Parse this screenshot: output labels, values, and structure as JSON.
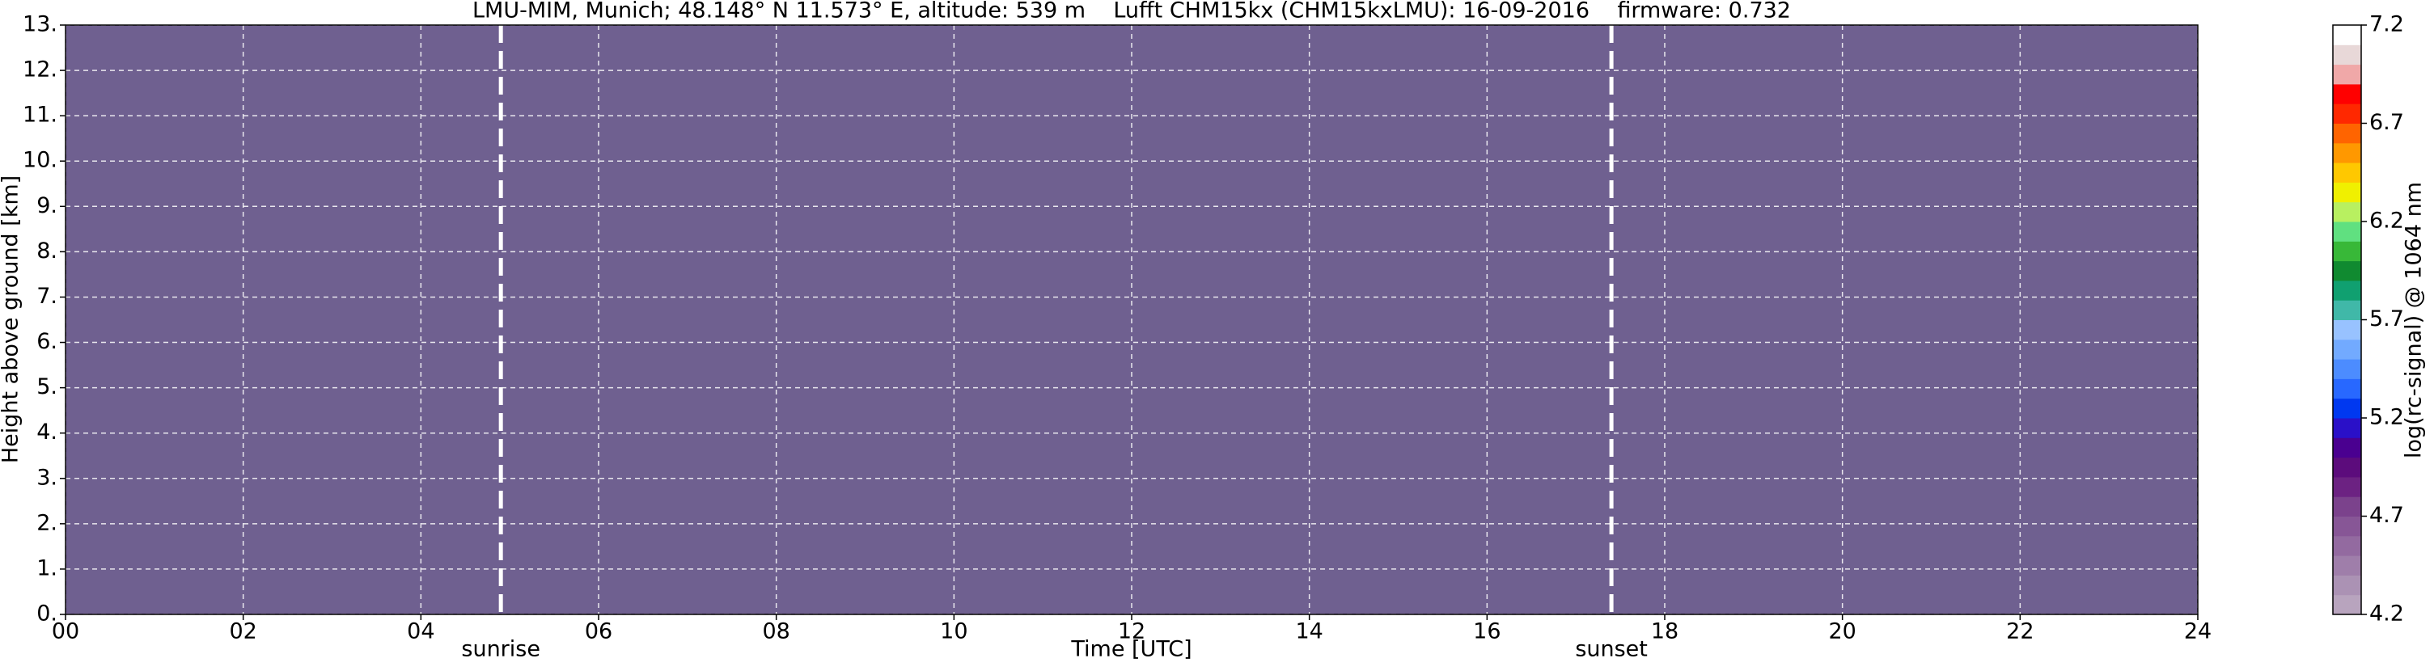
{
  "chart_data": {
    "type": "heatmap",
    "title": "LMU-MIM, Munich; 48.148° N 11.573° E, altitude: 539 m    Lufft CHM15kx (CHM15kxLMU): 16-09-2016    firmware: 0.732",
    "x_label": "Time [UTC]",
    "y_label": "Height above ground [km]",
    "xlim": [
      0,
      24
    ],
    "xticks": [
      {
        "value": 0,
        "label": "00"
      },
      {
        "value": 2,
        "label": "02"
      },
      {
        "value": 4,
        "label": "04"
      },
      {
        "value": 6,
        "label": "06"
      },
      {
        "value": 8,
        "label": "08"
      },
      {
        "value": 10,
        "label": "10"
      },
      {
        "value": 12,
        "label": "12"
      },
      {
        "value": 14,
        "label": "14"
      },
      {
        "value": 16,
        "label": "16"
      },
      {
        "value": 18,
        "label": "18"
      },
      {
        "value": 20,
        "label": "20"
      },
      {
        "value": 22,
        "label": "22"
      },
      {
        "value": 24,
        "label": "24"
      }
    ],
    "ylim": [
      0,
      13
    ],
    "yticks": [
      {
        "value": 0,
        "label": "0."
      },
      {
        "value": 1,
        "label": "1."
      },
      {
        "value": 2,
        "label": "2."
      },
      {
        "value": 3,
        "label": "3."
      },
      {
        "value": 4,
        "label": "4."
      },
      {
        "value": 5,
        "label": "5."
      },
      {
        "value": 6,
        "label": "6."
      },
      {
        "value": 7,
        "label": "7."
      },
      {
        "value": 8,
        "label": "8."
      },
      {
        "value": 9,
        "label": "9."
      },
      {
        "value": 10,
        "label": "10."
      },
      {
        "value": 11,
        "label": "11."
      },
      {
        "value": 12,
        "label": "12."
      },
      {
        "value": 13,
        "label": "13."
      }
    ],
    "grid": true,
    "background_color": "#6f6090",
    "annotations": [
      {
        "text": "sunrise",
        "x": 4.9
      },
      {
        "text": "sunset",
        "x": 17.4
      }
    ],
    "colorbar": {
      "label": "log(rc-signal) @ 1064 nm",
      "lim": [
        4.2,
        7.2
      ],
      "ticks": [
        4.2,
        4.7,
        5.2,
        5.7,
        6.2,
        6.7,
        7.2
      ],
      "colors": [
        "#b8a4be",
        "#ab92b4",
        "#9f7eaa",
        "#936aa0",
        "#875696",
        "#7b428c",
        "#6c2282",
        "#5c0c7c",
        "#4a0090",
        "#2a10c8",
        "#0038f0",
        "#2868ff",
        "#4c8cff",
        "#72aaff",
        "#98c2ff",
        "#40b8a8",
        "#10a070",
        "#108a30",
        "#38b838",
        "#60e080",
        "#b8f060",
        "#f0f000",
        "#ffc800",
        "#ff9800",
        "#ff6400",
        "#ff2800",
        "#ff0000",
        "#f0a8a8",
        "#e8d8d8",
        "#ffffff"
      ]
    }
  }
}
